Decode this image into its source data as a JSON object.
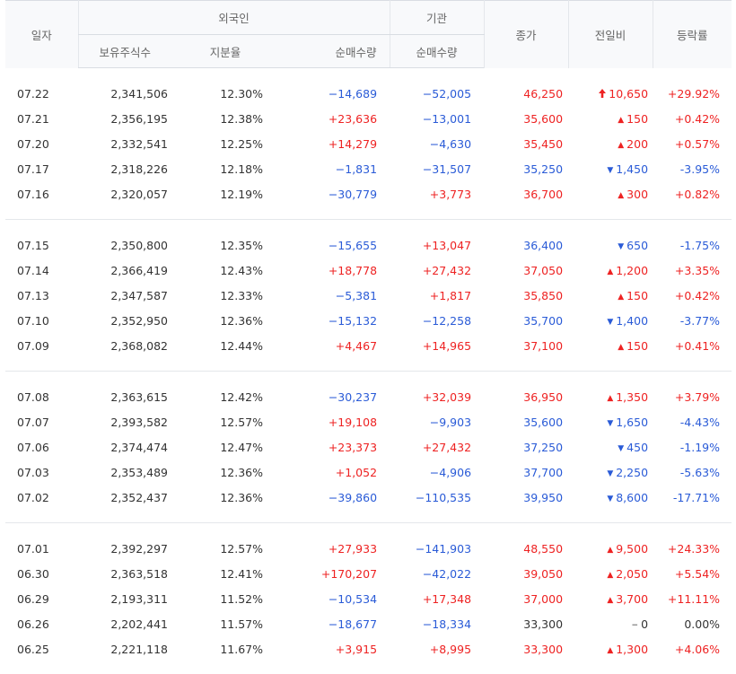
{
  "headers": {
    "date": "일자",
    "foreign": "외국인",
    "institution": "기관",
    "holdings": "보유주식수",
    "ratio": "지분율",
    "foreign_net": "순매수량",
    "inst_net": "순매수량",
    "close": "종가",
    "change": "전일비",
    "rate": "등락률"
  },
  "colors": {
    "up": "#ee2222",
    "down": "#2a5bd7",
    "flat": "#333333"
  },
  "groups": [
    [
      {
        "date": "07.22",
        "holdings": "2,341,506",
        "ratio": "12.30%",
        "foreign_net": "−14,689",
        "inst_net": "−52,005",
        "close": "46,250",
        "change_icon": "upper-limit",
        "change": "10,650",
        "rate": "+29.92%",
        "dir": "up"
      },
      {
        "date": "07.21",
        "holdings": "2,356,195",
        "ratio": "12.38%",
        "foreign_net": "+23,636",
        "inst_net": "−13,001",
        "close": "35,600",
        "change_icon": "up",
        "change": "150",
        "rate": "+0.42%",
        "dir": "up"
      },
      {
        "date": "07.20",
        "holdings": "2,332,541",
        "ratio": "12.25%",
        "foreign_net": "+14,279",
        "inst_net": "−4,630",
        "close": "35,450",
        "change_icon": "up",
        "change": "200",
        "rate": "+0.57%",
        "dir": "up"
      },
      {
        "date": "07.17",
        "holdings": "2,318,226",
        "ratio": "12.18%",
        "foreign_net": "−1,831",
        "inst_net": "−31,507",
        "close": "35,250",
        "change_icon": "down",
        "change": "1,450",
        "rate": "-3.95%",
        "dir": "down"
      },
      {
        "date": "07.16",
        "holdings": "2,320,057",
        "ratio": "12.19%",
        "foreign_net": "−30,779",
        "inst_net": "+3,773",
        "close": "36,700",
        "change_icon": "up",
        "change": "300",
        "rate": "+0.82%",
        "dir": "up"
      }
    ],
    [
      {
        "date": "07.15",
        "holdings": "2,350,800",
        "ratio": "12.35%",
        "foreign_net": "−15,655",
        "inst_net": "+13,047",
        "close": "36,400",
        "change_icon": "down",
        "change": "650",
        "rate": "-1.75%",
        "dir": "down"
      },
      {
        "date": "07.14",
        "holdings": "2,366,419",
        "ratio": "12.43%",
        "foreign_net": "+18,778",
        "inst_net": "+27,432",
        "close": "37,050",
        "change_icon": "up",
        "change": "1,200",
        "rate": "+3.35%",
        "dir": "up"
      },
      {
        "date": "07.13",
        "holdings": "2,347,587",
        "ratio": "12.33%",
        "foreign_net": "−5,381",
        "inst_net": "+1,817",
        "close": "35,850",
        "change_icon": "up",
        "change": "150",
        "rate": "+0.42%",
        "dir": "up"
      },
      {
        "date": "07.10",
        "holdings": "2,352,950",
        "ratio": "12.36%",
        "foreign_net": "−15,132",
        "inst_net": "−12,258",
        "close": "35,700",
        "change_icon": "down",
        "change": "1,400",
        "rate": "-3.77%",
        "dir": "down"
      },
      {
        "date": "07.09",
        "holdings": "2,368,082",
        "ratio": "12.44%",
        "foreign_net": "+4,467",
        "inst_net": "+14,965",
        "close": "37,100",
        "change_icon": "up",
        "change": "150",
        "rate": "+0.41%",
        "dir": "up"
      }
    ],
    [
      {
        "date": "07.08",
        "holdings": "2,363,615",
        "ratio": "12.42%",
        "foreign_net": "−30,237",
        "inst_net": "+32,039",
        "close": "36,950",
        "change_icon": "up",
        "change": "1,350",
        "rate": "+3.79%",
        "dir": "up"
      },
      {
        "date": "07.07",
        "holdings": "2,393,582",
        "ratio": "12.57%",
        "foreign_net": "+19,108",
        "inst_net": "−9,903",
        "close": "35,600",
        "change_icon": "down",
        "change": "1,650",
        "rate": "-4.43%",
        "dir": "down"
      },
      {
        "date": "07.06",
        "holdings": "2,374,474",
        "ratio": "12.47%",
        "foreign_net": "+23,373",
        "inst_net": "+27,432",
        "close": "37,250",
        "change_icon": "down",
        "change": "450",
        "rate": "-1.19%",
        "dir": "down"
      },
      {
        "date": "07.03",
        "holdings": "2,353,489",
        "ratio": "12.36%",
        "foreign_net": "+1,052",
        "inst_net": "−4,906",
        "close": "37,700",
        "change_icon": "down",
        "change": "2,250",
        "rate": "-5.63%",
        "dir": "down"
      },
      {
        "date": "07.02",
        "holdings": "2,352,437",
        "ratio": "12.36%",
        "foreign_net": "−39,860",
        "inst_net": "−110,535",
        "close": "39,950",
        "change_icon": "down",
        "change": "8,600",
        "rate": "-17.71%",
        "dir": "down"
      }
    ],
    [
      {
        "date": "07.01",
        "holdings": "2,392,297",
        "ratio": "12.57%",
        "foreign_net": "+27,933",
        "inst_net": "−141,903",
        "close": "48,550",
        "change_icon": "up",
        "change": "9,500",
        "rate": "+24.33%",
        "dir": "up"
      },
      {
        "date": "06.30",
        "holdings": "2,363,518",
        "ratio": "12.41%",
        "foreign_net": "+170,207",
        "inst_net": "−42,022",
        "close": "39,050",
        "change_icon": "up",
        "change": "2,050",
        "rate": "+5.54%",
        "dir": "up"
      },
      {
        "date": "06.29",
        "holdings": "2,193,311",
        "ratio": "11.52%",
        "foreign_net": "−10,534",
        "inst_net": "+17,348",
        "close": "37,000",
        "change_icon": "up",
        "change": "3,700",
        "rate": "+11.11%",
        "dir": "up"
      },
      {
        "date": "06.26",
        "holdings": "2,202,441",
        "ratio": "11.57%",
        "foreign_net": "−18,677",
        "inst_net": "−18,334",
        "close": "33,300",
        "change_icon": "flat",
        "change": "0",
        "rate": "0.00%",
        "dir": "flat"
      },
      {
        "date": "06.25",
        "holdings": "2,221,118",
        "ratio": "11.67%",
        "foreign_net": "+3,915",
        "inst_net": "+8,995",
        "close": "33,300",
        "change_icon": "up",
        "change": "1,300",
        "rate": "+4.06%",
        "dir": "up"
      }
    ]
  ]
}
